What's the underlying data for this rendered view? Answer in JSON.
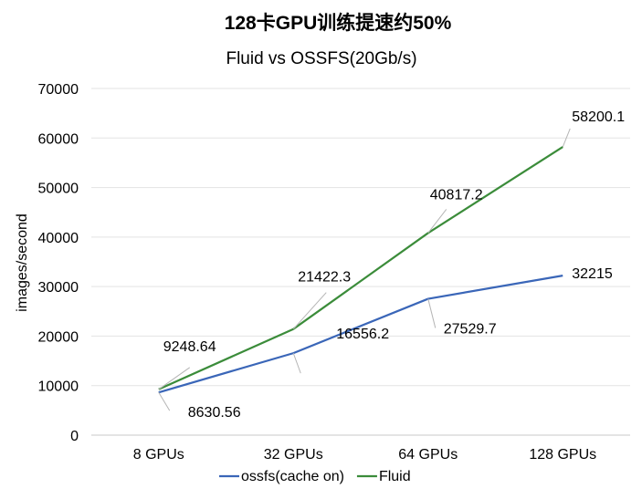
{
  "chart_data": {
    "type": "line",
    "title": "128卡GPU训练提速约50%",
    "subtitle": "Fluid vs OSSFS(20Gb/s)",
    "xlabel": "",
    "ylabel": "images/second",
    "categories": [
      "8 GPUs",
      "32 GPUs",
      "64 GPUs",
      "128 GPUs"
    ],
    "ylim": [
      0,
      70000
    ],
    "yticks": [
      0,
      10000,
      20000,
      30000,
      40000,
      50000,
      60000,
      70000
    ],
    "grid": true,
    "legend": "bottom",
    "series": [
      {
        "name": "ossfs(cache on)",
        "color": "#3a66b8",
        "values": [
          8630.56,
          16556.2,
          27529.7,
          32215
        ],
        "labels": [
          "8630.56",
          "16556.2",
          "27529.7",
          "32215"
        ]
      },
      {
        "name": "Fluid",
        "color": "#3b8c3a",
        "values": [
          9248.64,
          21422.3,
          40817.2,
          58200.1
        ],
        "labels": [
          "9248.64",
          "21422.3",
          "40817.2",
          "58200.1"
        ]
      }
    ]
  }
}
